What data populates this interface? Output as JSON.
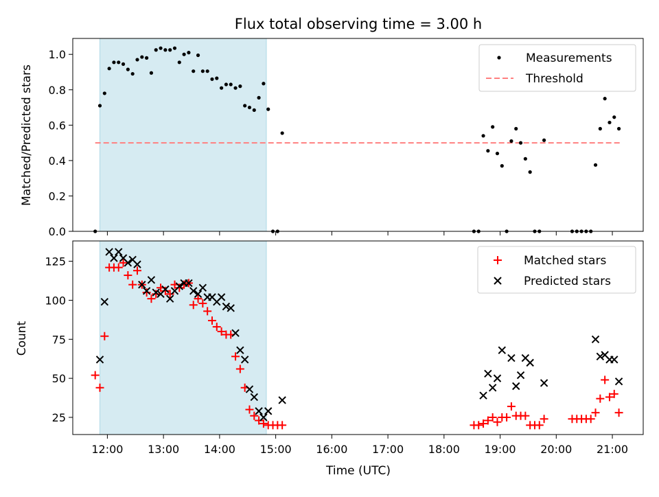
{
  "title": "Flux total observing time = 3.00 h",
  "colors": {
    "measurement": "#000000",
    "threshold": "#ff7f7f",
    "matched": "#ff0000",
    "predicted": "#000000",
    "shade": "#add8e6"
  },
  "chart_data": [
    {
      "type": "scatter",
      "panel": "top",
      "ylabel": "Matched/Predicted stars",
      "ylim": [
        0,
        1.09
      ],
      "yticks": [
        "0.0",
        "0.2",
        "0.4",
        "0.6",
        "0.8",
        "1.0"
      ],
      "legend_placement": "top-right",
      "shaded_span": [
        "11:52",
        "14:50"
      ],
      "series": [
        {
          "name": "Measurements",
          "marker": "dot",
          "points": [
            [
              "11:47",
              0.0
            ],
            [
              "11:52",
              0.71
            ],
            [
              "11:57",
              0.78
            ],
            [
              "12:02",
              0.92
            ],
            [
              "12:07",
              0.955
            ],
            [
              "12:12",
              0.955
            ],
            [
              "12:17",
              0.945
            ],
            [
              "12:22",
              0.915
            ],
            [
              "12:27",
              0.89
            ],
            [
              "12:32",
              0.97
            ],
            [
              "12:37",
              0.985
            ],
            [
              "12:42",
              0.98
            ],
            [
              "12:47",
              0.895
            ],
            [
              "12:52",
              1.025
            ],
            [
              "12:57",
              1.035
            ],
            [
              "13:02",
              1.025
            ],
            [
              "13:07",
              1.025
            ],
            [
              "13:12",
              1.035
            ],
            [
              "13:17",
              0.955
            ],
            [
              "13:22",
              1.0
            ],
            [
              "13:27",
              1.01
            ],
            [
              "13:32",
              0.905
            ],
            [
              "13:37",
              0.995
            ],
            [
              "13:42",
              0.905
            ],
            [
              "13:47",
              0.905
            ],
            [
              "13:52",
              0.86
            ],
            [
              "13:57",
              0.865
            ],
            [
              "14:02",
              0.81
            ],
            [
              "14:07",
              0.83
            ],
            [
              "14:12",
              0.83
            ],
            [
              "14:17",
              0.81
            ],
            [
              "14:22",
              0.82
            ],
            [
              "14:27",
              0.71
            ],
            [
              "14:32",
              0.7
            ],
            [
              "14:37",
              0.685
            ],
            [
              "14:42",
              0.755
            ],
            [
              "14:47",
              0.835
            ],
            [
              "14:52",
              0.69
            ],
            [
              "14:57",
              0.0
            ],
            [
              "15:02",
              0.0
            ],
            [
              "15:07",
              0.555
            ],
            [
              "18:32",
              0.0
            ],
            [
              "18:37",
              0.0
            ],
            [
              "18:42",
              0.54
            ],
            [
              "18:47",
              0.455
            ],
            [
              "18:52",
              0.59
            ],
            [
              "18:57",
              0.44
            ],
            [
              "19:02",
              0.37
            ],
            [
              "19:07",
              0.0
            ],
            [
              "19:12",
              0.51
            ],
            [
              "19:17",
              0.58
            ],
            [
              "19:22",
              0.5
            ],
            [
              "19:27",
              0.41
            ],
            [
              "19:32",
              0.335
            ],
            [
              "19:37",
              0.0
            ],
            [
              "19:42",
              0.0
            ],
            [
              "19:47",
              0.515
            ],
            [
              "20:17",
              0.0
            ],
            [
              "20:22",
              0.0
            ],
            [
              "20:27",
              0.0
            ],
            [
              "20:32",
              0.0
            ],
            [
              "20:37",
              0.0
            ],
            [
              "20:42",
              0.375
            ],
            [
              "20:47",
              0.58
            ],
            [
              "20:52",
              0.75
            ],
            [
              "20:57",
              0.615
            ],
            [
              "21:02",
              0.645
            ],
            [
              "21:07",
              0.58
            ]
          ]
        },
        {
          "name": "Threshold",
          "marker": "dashed-line",
          "points": [
            [
              "11:47",
              0.5
            ],
            [
              "21:10",
              0.5
            ]
          ]
        }
      ]
    },
    {
      "type": "scatter",
      "panel": "bottom",
      "xlabel": "Time (UTC)",
      "ylabel": "Count",
      "ylim": [
        14,
        138
      ],
      "yticks": [
        "25",
        "50",
        "75",
        "100",
        "125"
      ],
      "xticks": [
        "12:00",
        "13:00",
        "14:00",
        "15:00",
        "16:00",
        "17:00",
        "18:00",
        "19:00",
        "20:00",
        "21:00"
      ],
      "xlim": [
        "11:23",
        "21:33"
      ],
      "legend_placement": "top-right",
      "shaded_span": [
        "11:52",
        "14:50"
      ],
      "series": [
        {
          "name": "Matched stars",
          "marker": "plus",
          "points": [
            [
              "11:47",
              52
            ],
            [
              "11:52",
              44
            ],
            [
              "11:57",
              77
            ],
            [
              "12:02",
              121
            ],
            [
              "12:07",
              121
            ],
            [
              "12:12",
              121
            ],
            [
              "12:17",
              124
            ],
            [
              "12:22",
              116
            ],
            [
              "12:27",
              110
            ],
            [
              "12:32",
              119
            ],
            [
              "12:37",
              110
            ],
            [
              "12:42",
              105
            ],
            [
              "12:47",
              101
            ],
            [
              "12:52",
              104
            ],
            [
              "12:57",
              108
            ],
            [
              "13:02",
              106
            ],
            [
              "13:07",
              104
            ],
            [
              "13:12",
              110
            ],
            [
              "13:17",
              108
            ],
            [
              "13:22",
              110
            ],
            [
              "13:27",
              111
            ],
            [
              "13:32",
              97
            ],
            [
              "13:37",
              101
            ],
            [
              "13:42",
              98
            ],
            [
              "13:47",
              93
            ],
            [
              "13:52",
              87
            ],
            [
              "13:57",
              83
            ],
            [
              "14:02",
              80
            ],
            [
              "14:07",
              78
            ],
            [
              "14:12",
              78
            ],
            [
              "14:17",
              64
            ],
            [
              "14:22",
              56
            ],
            [
              "14:27",
              44
            ],
            [
              "14:32",
              30
            ],
            [
              "14:37",
              26
            ],
            [
              "14:42",
              23
            ],
            [
              "14:47",
              21
            ],
            [
              "14:52",
              20
            ],
            [
              "14:57",
              20
            ],
            [
              "15:02",
              20
            ],
            [
              "15:07",
              20
            ],
            [
              "18:32",
              20
            ],
            [
              "18:37",
              20
            ],
            [
              "18:42",
              21
            ],
            [
              "18:47",
              23
            ],
            [
              "18:52",
              25
            ],
            [
              "18:57",
              22
            ],
            [
              "19:02",
              25
            ],
            [
              "19:07",
              25
            ],
            [
              "19:12",
              32
            ],
            [
              "19:17",
              26
            ],
            [
              "19:22",
              26
            ],
            [
              "19:27",
              26
            ],
            [
              "19:32",
              20
            ],
            [
              "19:37",
              20
            ],
            [
              "19:42",
              20
            ],
            [
              "19:47",
              24
            ],
            [
              "20:17",
              24
            ],
            [
              "20:22",
              24
            ],
            [
              "20:27",
              24
            ],
            [
              "20:32",
              24
            ],
            [
              "20:37",
              24
            ],
            [
              "20:42",
              28
            ],
            [
              "20:47",
              37
            ],
            [
              "20:52",
              49
            ],
            [
              "20:57",
              38
            ],
            [
              "21:02",
              40
            ],
            [
              "21:07",
              28
            ]
          ]
        },
        {
          "name": "Predicted stars",
          "marker": "x",
          "points": [
            [
              "11:52",
              62
            ],
            [
              "11:57",
              99
            ],
            [
              "12:02",
              131
            ],
            [
              "12:07",
              127
            ],
            [
              "12:12",
              131
            ],
            [
              "12:17",
              127
            ],
            [
              "12:22",
              124
            ],
            [
              "12:27",
              126
            ],
            [
              "12:32",
              123
            ],
            [
              "12:37",
              110
            ],
            [
              "12:42",
              106
            ],
            [
              "12:47",
              113
            ],
            [
              "12:52",
              105
            ],
            [
              "12:57",
              104
            ],
            [
              "13:02",
              107
            ],
            [
              "13:07",
              101
            ],
            [
              "13:12",
              106
            ],
            [
              "13:17",
              109
            ],
            [
              "13:22",
              111
            ],
            [
              "13:27",
              111
            ],
            [
              "13:32",
              106
            ],
            [
              "13:37",
              104
            ],
            [
              "13:42",
              108
            ],
            [
              "13:47",
              102
            ],
            [
              "13:52",
              102
            ],
            [
              "13:57",
              99
            ],
            [
              "14:02",
              102
            ],
            [
              "14:07",
              96
            ],
            [
              "14:12",
              95
            ],
            [
              "14:17",
              79
            ],
            [
              "14:22",
              68
            ],
            [
              "14:27",
              62
            ],
            [
              "14:32",
              43
            ],
            [
              "14:37",
              38
            ],
            [
              "14:42",
              29
            ],
            [
              "14:47",
              25
            ],
            [
              "14:52",
              29
            ],
            [
              "15:07",
              36
            ],
            [
              "18:42",
              39
            ],
            [
              "18:47",
              53
            ],
            [
              "18:52",
              44
            ],
            [
              "18:57",
              50
            ],
            [
              "19:02",
              68
            ],
            [
              "19:12",
              63
            ],
            [
              "19:17",
              45
            ],
            [
              "19:22",
              52
            ],
            [
              "19:27",
              63
            ],
            [
              "19:32",
              60
            ],
            [
              "19:47",
              47
            ],
            [
              "20:42",
              75
            ],
            [
              "20:47",
              64
            ],
            [
              "20:52",
              65
            ],
            [
              "20:57",
              62
            ],
            [
              "21:02",
              62
            ],
            [
              "21:07",
              48
            ]
          ]
        }
      ]
    }
  ]
}
